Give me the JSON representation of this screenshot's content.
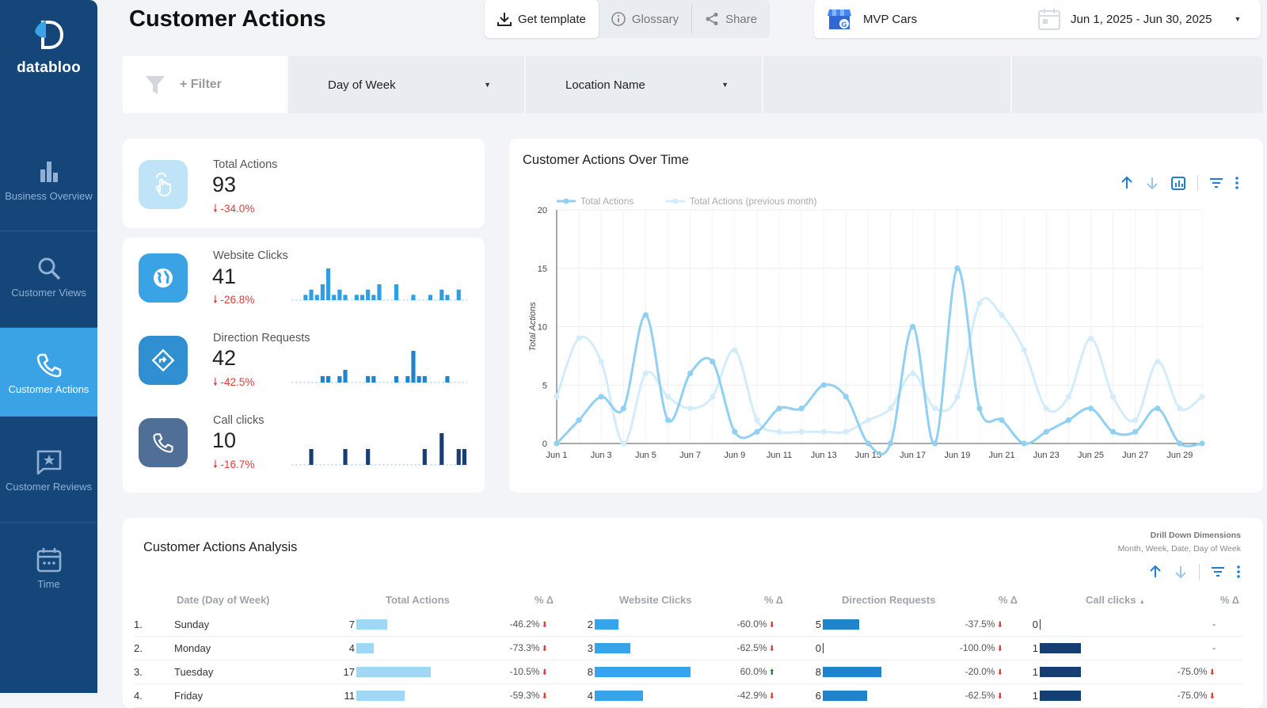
{
  "sidebar": {
    "brand": "databloo",
    "items": [
      {
        "label": "Business Overview",
        "icon": "bar-chart-icon",
        "active": false
      },
      {
        "label": "Customer Views",
        "icon": "search-icon",
        "active": false
      },
      {
        "label": "Customer Actions",
        "icon": "phone-icon",
        "active": true
      },
      {
        "label": "Customer Reviews",
        "icon": "star-message-icon",
        "active": false
      },
      {
        "label": "Time",
        "icon": "calendar-icon",
        "active": false
      }
    ]
  },
  "header": {
    "title": "Customer Actions",
    "toolbar": {
      "get_template": "Get template",
      "glossary": "Glossary",
      "share": "Share"
    },
    "account": "MVP Cars",
    "date_range": "Jun 1, 2025 - Jun 30, 2025"
  },
  "filters": {
    "add_filter": "+ Filter",
    "dropdowns": [
      "Day of Week",
      "Location Name"
    ]
  },
  "kpis": [
    {
      "label": "Total Actions",
      "value": "93",
      "delta": "-34.0%",
      "icon": "hand-tap-icon",
      "color": "#bfe3f7"
    },
    {
      "label": "Website Clicks",
      "value": "41",
      "delta": "-26.8%",
      "icon": "globe-icon",
      "color": "#3aa3e6",
      "spark_color": "#2f9ee3",
      "spark": [
        0,
        0,
        1,
        2,
        1,
        3,
        6,
        1,
        2,
        1,
        0,
        1,
        1,
        2,
        1,
        3,
        0,
        0,
        3,
        0,
        0,
        1,
        0,
        0,
        1,
        0,
        2,
        1,
        0,
        2,
        0
      ]
    },
    {
      "label": "Direction Requests",
      "value": "42",
      "delta": "-42.5%",
      "icon": "direction-icon",
      "color": "#2f8fd0",
      "spark_color": "#1f84cc",
      "spark": [
        0,
        0,
        0,
        0,
        0,
        1,
        1,
        0,
        1,
        2,
        0,
        0,
        0,
        1,
        1,
        0,
        0,
        0,
        1,
        0,
        1,
        5,
        1,
        1,
        0,
        0,
        0,
        1,
        0,
        0,
        0
      ]
    },
    {
      "label": "Call clicks",
      "value": "10",
      "delta": "-16.7%",
      "icon": "phone-icon",
      "color": "#4f6f96",
      "spark_color": "#173f73",
      "spark": [
        0,
        0,
        0,
        1,
        0,
        0,
        0,
        0,
        0,
        1,
        0,
        0,
        0,
        1,
        0,
        0,
        0,
        0,
        0,
        0,
        0,
        0,
        0,
        1,
        0,
        0,
        2,
        0,
        0,
        1,
        1
      ]
    }
  ],
  "chart_data": {
    "type": "line",
    "title": "Customer Actions Over Time",
    "ylabel": "Total Actions",
    "xlabel": "",
    "ylim": [
      0,
      20
    ],
    "yticks": [
      0,
      5,
      10,
      15,
      20
    ],
    "x": [
      "Jun 1",
      "Jun 2",
      "Jun 3",
      "Jun 4",
      "Jun 5",
      "Jun 6",
      "Jun 7",
      "Jun 8",
      "Jun 9",
      "Jun 10",
      "Jun 11",
      "Jun 12",
      "Jun 13",
      "Jun 14",
      "Jun 15",
      "Jun 16",
      "Jun 17",
      "Jun 18",
      "Jun 19",
      "Jun 20",
      "Jun 21",
      "Jun 22",
      "Jun 23",
      "Jun 24",
      "Jun 25",
      "Jun 26",
      "Jun 27",
      "Jun 28",
      "Jun 29",
      "Jun 30"
    ],
    "xtick_labels": [
      "Jun 1",
      "Jun 3",
      "Jun 5",
      "Jun 7",
      "Jun 9",
      "Jun 11",
      "Jun 13",
      "Jun 15",
      "Jun 17",
      "Jun 19",
      "Jun 21",
      "Jun 23",
      "Jun 25",
      "Jun 27",
      "Jun 29"
    ],
    "legend_position": "top-left",
    "grid": true,
    "series": [
      {
        "name": "Total Actions",
        "color": "#8fd0f3",
        "values": [
          0,
          2,
          4,
          3,
          11,
          2,
          6,
          7,
          1,
          1,
          3,
          3,
          5,
          4,
          0,
          0,
          10,
          0,
          15,
          3,
          2,
          0,
          1,
          2,
          3,
          1,
          1,
          3,
          0,
          0
        ]
      },
      {
        "name": "Total Actions (previous month)",
        "color": "#d3ecfa",
        "values": [
          4,
          9,
          7,
          0,
          6,
          4,
          3,
          4,
          8,
          2,
          1,
          1,
          1,
          1,
          2,
          3,
          6,
          3,
          4,
          12,
          11,
          8,
          3,
          4,
          9,
          4,
          2,
          7,
          3,
          4
        ]
      }
    ]
  },
  "chart_actions": [
    "arrow-up-icon",
    "arrow-down-icon",
    "chart-settings-icon",
    "filter-icon",
    "more-vert-icon"
  ],
  "table": {
    "title": "Customer Actions Analysis",
    "drill_title": "Drill Down Dimensions",
    "drill_dims": "Month, Week, Date, Day of Week",
    "columns": [
      "Date (Day of Week)",
      "Total Actions",
      "% Δ",
      "Website Clicks",
      "% Δ",
      "Direction Requests",
      "% Δ",
      "Call clicks",
      "% Δ"
    ],
    "sort_indicator": "▲",
    "rows": [
      {
        "idx": "1.",
        "day": "Sunday",
        "total": 7,
        "total_pct": "-46.2%",
        "web": 2,
        "web_pct": "-60.0%",
        "web_dir": "down",
        "dir": 5,
        "dir_pct": "-37.5%",
        "call": 0,
        "call_pct": "-"
      },
      {
        "idx": "2.",
        "day": "Monday",
        "total": 4,
        "total_pct": "-73.3%",
        "web": 3,
        "web_pct": "-62.5%",
        "web_dir": "down",
        "dir": 0,
        "dir_pct": "-100.0%",
        "call": 1,
        "call_pct": "-"
      },
      {
        "idx": "3.",
        "day": "Tuesday",
        "total": 17,
        "total_pct": "-10.5%",
        "web": 8,
        "web_pct": "60.0%",
        "web_dir": "up",
        "dir": 8,
        "dir_pct": "-20.0%",
        "call": 1,
        "call_pct": "-75.0%"
      },
      {
        "idx": "4.",
        "day": "Friday",
        "total": 11,
        "total_pct": "-59.3%",
        "web": 4,
        "web_pct": "-42.9%",
        "web_dir": "down",
        "dir": 6,
        "dir_pct": "-62.5%",
        "call": 1,
        "call_pct": "-75.0%"
      }
    ],
    "bar_colors": {
      "total": "#9fd7f5",
      "web": "#35a4ea",
      "dir": "#1f84cc",
      "call": "#153f72"
    },
    "bar_max": {
      "total": 17,
      "web": 8,
      "dir": 8,
      "call": 1
    }
  }
}
